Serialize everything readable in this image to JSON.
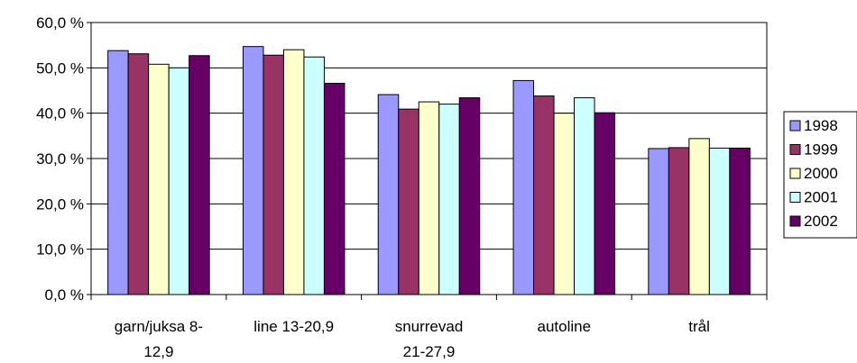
{
  "chart_data": {
    "type": "bar",
    "categories": [
      [
        "garn/juksa 8-",
        "12,9"
      ],
      [
        "line 13-20,9"
      ],
      [
        "snurrevad",
        "21-27,9"
      ],
      [
        "autoline"
      ],
      [
        "trål"
      ]
    ],
    "series": [
      {
        "name": "1998",
        "color": "#9999FF",
        "values": [
          53.8,
          54.7,
          44.1,
          47.2,
          32.2
        ]
      },
      {
        "name": "1999",
        "color": "#993366",
        "values": [
          53.1,
          52.8,
          40.9,
          43.8,
          32.4
        ]
      },
      {
        "name": "2000",
        "color": "#FFFFCC",
        "values": [
          50.8,
          54.0,
          42.5,
          40.0,
          34.4
        ]
      },
      {
        "name": "2001",
        "color": "#CCFFFF",
        "values": [
          50.0,
          52.4,
          42.0,
          43.4,
          32.3
        ]
      },
      {
        "name": "2002",
        "color": "#660066",
        "values": [
          52.7,
          46.6,
          43.4,
          40.1,
          32.3
        ]
      }
    ],
    "ylim": [
      0,
      60
    ],
    "yticks": [
      "0,0 %",
      "10,0 %",
      "20,0 %",
      "30,0 %",
      "40,0 %",
      "50,0 %",
      "60,0 %"
    ],
    "grid": true,
    "legend_position": "right"
  }
}
